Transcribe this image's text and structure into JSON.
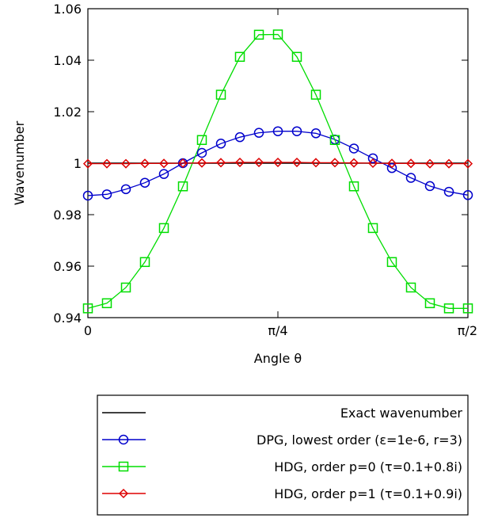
{
  "chart_data": {
    "type": "line",
    "xlabel": "Angle θ",
    "ylabel": "Wavenumber",
    "xlim": [
      0,
      1.5708
    ],
    "ylim": [
      0.94,
      1.06
    ],
    "x_ticks": [
      {
        "value": 0,
        "label": "0"
      },
      {
        "value": 0.7854,
        "label": "π/4"
      },
      {
        "value": 1.5708,
        "label": "π/2"
      }
    ],
    "y_ticks": [
      {
        "value": 0.94,
        "label": "0.94"
      },
      {
        "value": 0.96,
        "label": "0.96"
      },
      {
        "value": 0.98,
        "label": "0.98"
      },
      {
        "value": 1.0,
        "label": "1"
      },
      {
        "value": 1.02,
        "label": "1.02"
      },
      {
        "value": 1.04,
        "label": "1.04"
      },
      {
        "value": 1.06,
        "label": "1.06"
      }
    ],
    "grid": false,
    "legend_position": "below plot",
    "series": [
      {
        "name": "Exact wavenumber",
        "color": "#000000",
        "marker": "none",
        "x": [
          0,
          1.5708
        ],
        "y": [
          1.0,
          1.0
        ]
      },
      {
        "name": "DPG, lowest order (ε=1e-6, r=3)",
        "color": "#0000cc",
        "marker": "circle",
        "x": [
          0,
          0.0785,
          0.1571,
          0.2356,
          0.3142,
          0.3927,
          0.4712,
          0.5498,
          0.6283,
          0.7069,
          0.7854,
          0.8639,
          0.9425,
          1.021,
          1.0996,
          1.1781,
          1.2566,
          1.3352,
          1.4137,
          1.4923,
          1.5708
        ],
        "y": [
          0.9874,
          0.9879,
          0.9899,
          0.9924,
          0.9958,
          1.0,
          1.004,
          1.0076,
          1.0101,
          1.0118,
          1.0124,
          1.0124,
          1.0116,
          1.0092,
          1.0057,
          1.0019,
          0.9981,
          0.9943,
          0.9911,
          0.9889,
          0.9876
        ]
      },
      {
        "name": "HDG, order p=0 (τ=0.1+0.8i)",
        "color": "#00dd00",
        "marker": "square",
        "x": [
          0,
          0.0785,
          0.1571,
          0.2356,
          0.3142,
          0.3927,
          0.4712,
          0.5498,
          0.6283,
          0.7069,
          0.7854,
          0.8639,
          0.9425,
          1.021,
          1.0996,
          1.1781,
          1.2566,
          1.3352,
          1.4137,
          1.4923,
          1.5708
        ],
        "y": [
          0.9436,
          0.9456,
          0.9517,
          0.9616,
          0.9748,
          0.991,
          1.009,
          1.0266,
          1.0413,
          1.0499,
          1.05,
          1.0413,
          1.0266,
          1.009,
          0.991,
          0.9748,
          0.9616,
          0.9517,
          0.9456,
          0.9436,
          0.9436
        ]
      },
      {
        "name": "HDG, order p=1 (τ=0.1+0.9i)",
        "color": "#dd0000",
        "marker": "diamond",
        "x": [
          0,
          0.0785,
          0.1571,
          0.2356,
          0.3142,
          0.3927,
          0.4712,
          0.5498,
          0.6283,
          0.7069,
          0.7854,
          0.8639,
          0.9425,
          1.021,
          1.0996,
          1.1781,
          1.2566,
          1.3352,
          1.4137,
          1.4923,
          1.5708
        ],
        "y": [
          0.9998,
          0.9998,
          0.9998,
          0.9999,
          0.9999,
          1.0,
          1.0001,
          1.0002,
          1.0003,
          1.0003,
          1.0003,
          1.0003,
          1.0002,
          1.0002,
          1.0001,
          1.0,
          0.9999,
          0.9999,
          0.9998,
          0.9998,
          0.9998
        ]
      }
    ]
  }
}
